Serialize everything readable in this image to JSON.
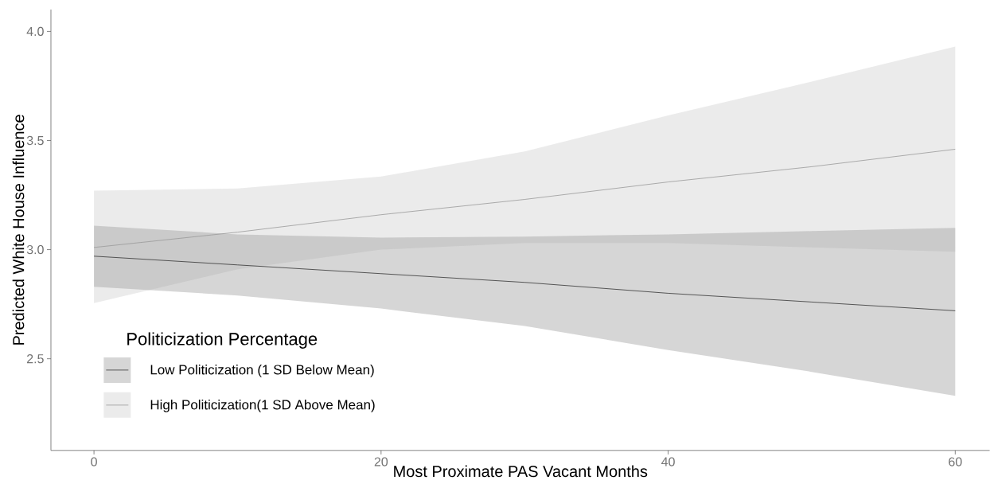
{
  "chart_data": {
    "type": "line",
    "xlabel": "Most Proximate PAS Vacant Months",
    "ylabel": "Predicted White House Influence",
    "legend_title": "Politicization Percentage",
    "x": [
      0,
      10,
      20,
      30,
      40,
      50,
      60
    ],
    "series": [
      {
        "name": "Low Politicization (1 SD Below Mean)",
        "color": "#333333",
        "values": [
          2.97,
          2.93,
          2.89,
          2.85,
          2.8,
          2.76,
          2.72
        ],
        "lower": [
          2.83,
          2.79,
          2.73,
          2.65,
          2.54,
          2.44,
          2.33
        ],
        "upper": [
          3.11,
          3.07,
          3.055,
          3.06,
          3.07,
          3.085,
          3.1
        ]
      },
      {
        "name": "High Politicization(1 SD Above Mean)",
        "color": "#999999",
        "values": [
          3.01,
          3.08,
          3.16,
          3.23,
          3.31,
          3.38,
          3.46
        ],
        "lower": [
          2.755,
          2.91,
          3.0,
          3.03,
          3.03,
          3.01,
          2.99
        ],
        "upper": [
          3.27,
          3.28,
          3.335,
          3.45,
          3.615,
          3.77,
          3.93
        ]
      }
    ],
    "xlim": [
      -3,
      62.4
    ],
    "ylim": [
      2.08,
      4.1
    ],
    "xticks": [
      0,
      20,
      40,
      60
    ],
    "yticks": [
      2.5,
      {
        "value": 3,
        "label": "3.0"
      },
      3.5,
      {
        "value": 4,
        "label": "4.0"
      }
    ],
    "grid": false,
    "legend": "bottom left"
  }
}
